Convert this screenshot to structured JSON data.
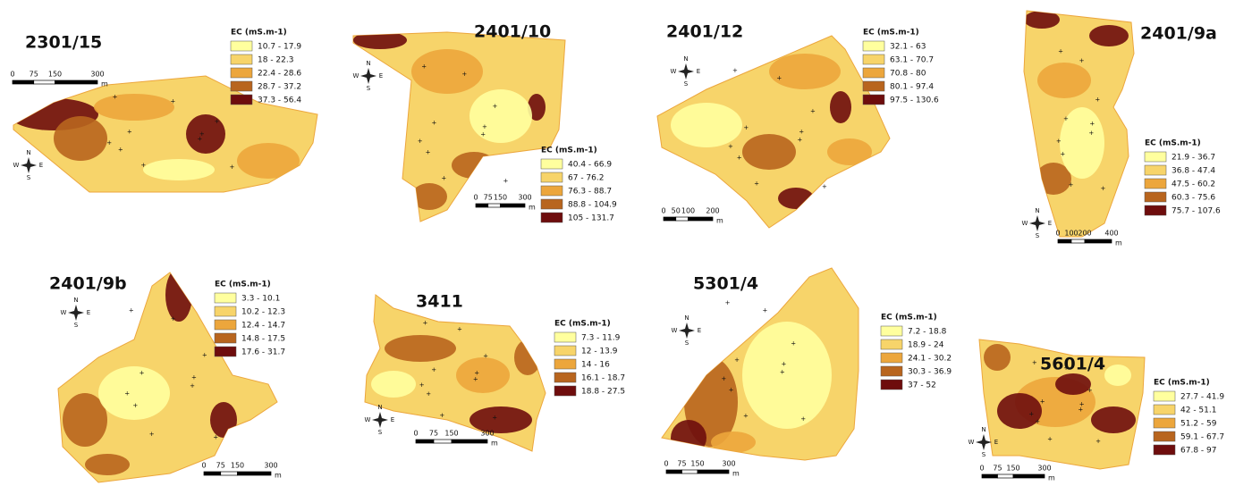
{
  "legend_colors": [
    "#ffff9e",
    "#f7d46a",
    "#eca63c",
    "#b8651e",
    "#6e0d0d"
  ],
  "compass": {
    "n": "N",
    "s": "S",
    "e": "E",
    "w": "W"
  },
  "scale_unit": "m",
  "panels": [
    {
      "title": "2301/15",
      "legend_title": "EC (mS.m-1)",
      "classes": [
        "10.7 - 17.9",
        "18 - 22.3",
        "22.4 - 28.6",
        "28.7 - 37.2",
        "37.3 - 56.4"
      ],
      "scale": [
        "0",
        "75",
        "150",
        "300"
      ]
    },
    {
      "title": "2401/10",
      "legend_title": "EC (mS.m-1)",
      "classes": [
        "40.4 - 66.9",
        "67 - 76.2",
        "76.3 - 88.7",
        "88.8 - 104.9",
        "105 - 131.7"
      ],
      "scale": [
        "0",
        "75",
        "150",
        "300"
      ]
    },
    {
      "title": "2401/12",
      "legend_title": "EC (mS.m-1)",
      "classes": [
        "32.1 - 63",
        "63.1 - 70.7",
        "70.8 - 80",
        "80.1 - 97.4",
        "97.5 - 130.6"
      ],
      "scale": [
        "0",
        "50",
        "100",
        "200"
      ]
    },
    {
      "title": "2401/9a",
      "legend_title": "EC (mS.m-1)",
      "classes": [
        "21.9 - 36.7",
        "36.8 - 47.4",
        "47.5 - 60.2",
        "60.3 - 75.6",
        "75.7 - 107.6"
      ],
      "scale": [
        "0",
        "100",
        "200",
        "400"
      ]
    },
    {
      "title": "2401/9b",
      "legend_title": "EC (mS.m-1)",
      "classes": [
        "3.3 - 10.1",
        "10.2 - 12.3",
        "12.4 - 14.7",
        "14.8 - 17.5",
        "17.6 - 31.7"
      ],
      "scale": [
        "0",
        "75",
        "150",
        "300"
      ]
    },
    {
      "title": "3411",
      "legend_title": "EC (mS.m-1)",
      "classes": [
        "7.3 - 11.9",
        "12 - 13.9",
        "14 - 16",
        "16.1 - 18.7",
        "18.8 - 27.5"
      ],
      "scale": [
        "0",
        "75",
        "150",
        "300"
      ]
    },
    {
      "title": "5301/4",
      "legend_title": "EC (mS.m-1)",
      "classes": [
        "7.2 - 18.8",
        "18.9 - 24",
        "24.1 - 30.2",
        "30.3 - 36.9",
        "37 - 52"
      ],
      "scale": [
        "0",
        "75",
        "150",
        "300"
      ]
    },
    {
      "title": "5601/4",
      "legend_title": "EC (mS.m-1)",
      "classes": [
        "27.7 - 41.9",
        "42 - 51.1",
        "51.2 - 59",
        "59.1 - 67.7",
        "67.8 - 97"
      ],
      "scale": [
        "0",
        "75",
        "150",
        "300"
      ]
    }
  ]
}
